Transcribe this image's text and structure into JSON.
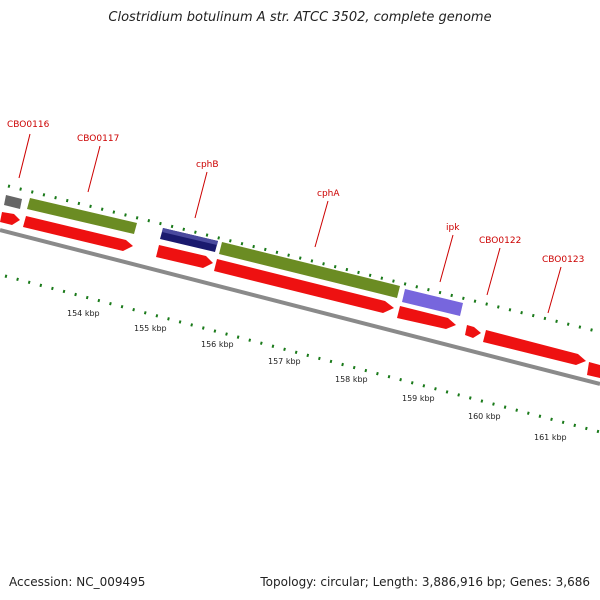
{
  "title": "Clostridium botulinum A str. ATCC 3502, complete genome",
  "footer": {
    "accession": "Accession: NC_009495",
    "summary": "Topology: circular; Length: 3,886,916 bp; Genes: 3,686"
  },
  "colors": {
    "cds_red": "#ee1111",
    "green": "#6b8c23",
    "navy": "#1a1a6e",
    "purple": "#7766dd",
    "grey": "#666666",
    "backbone": "#8a8a8a",
    "tick": "#1a7a1a",
    "label": "#cc0000"
  },
  "labels": [
    {
      "name": "CBO0116"
    },
    {
      "name": "CBO0117"
    },
    {
      "name": "cphB"
    },
    {
      "name": "cphA"
    },
    {
      "name": "ipk"
    },
    {
      "name": "CBO0122"
    },
    {
      "name": "CBO0123"
    }
  ],
  "kbp_labels": [
    "154 kbp",
    "155 kbp",
    "156 kbp",
    "157 kbp",
    "158 kbp",
    "159 kbp",
    "160 kbp",
    "161 kbp"
  ]
}
